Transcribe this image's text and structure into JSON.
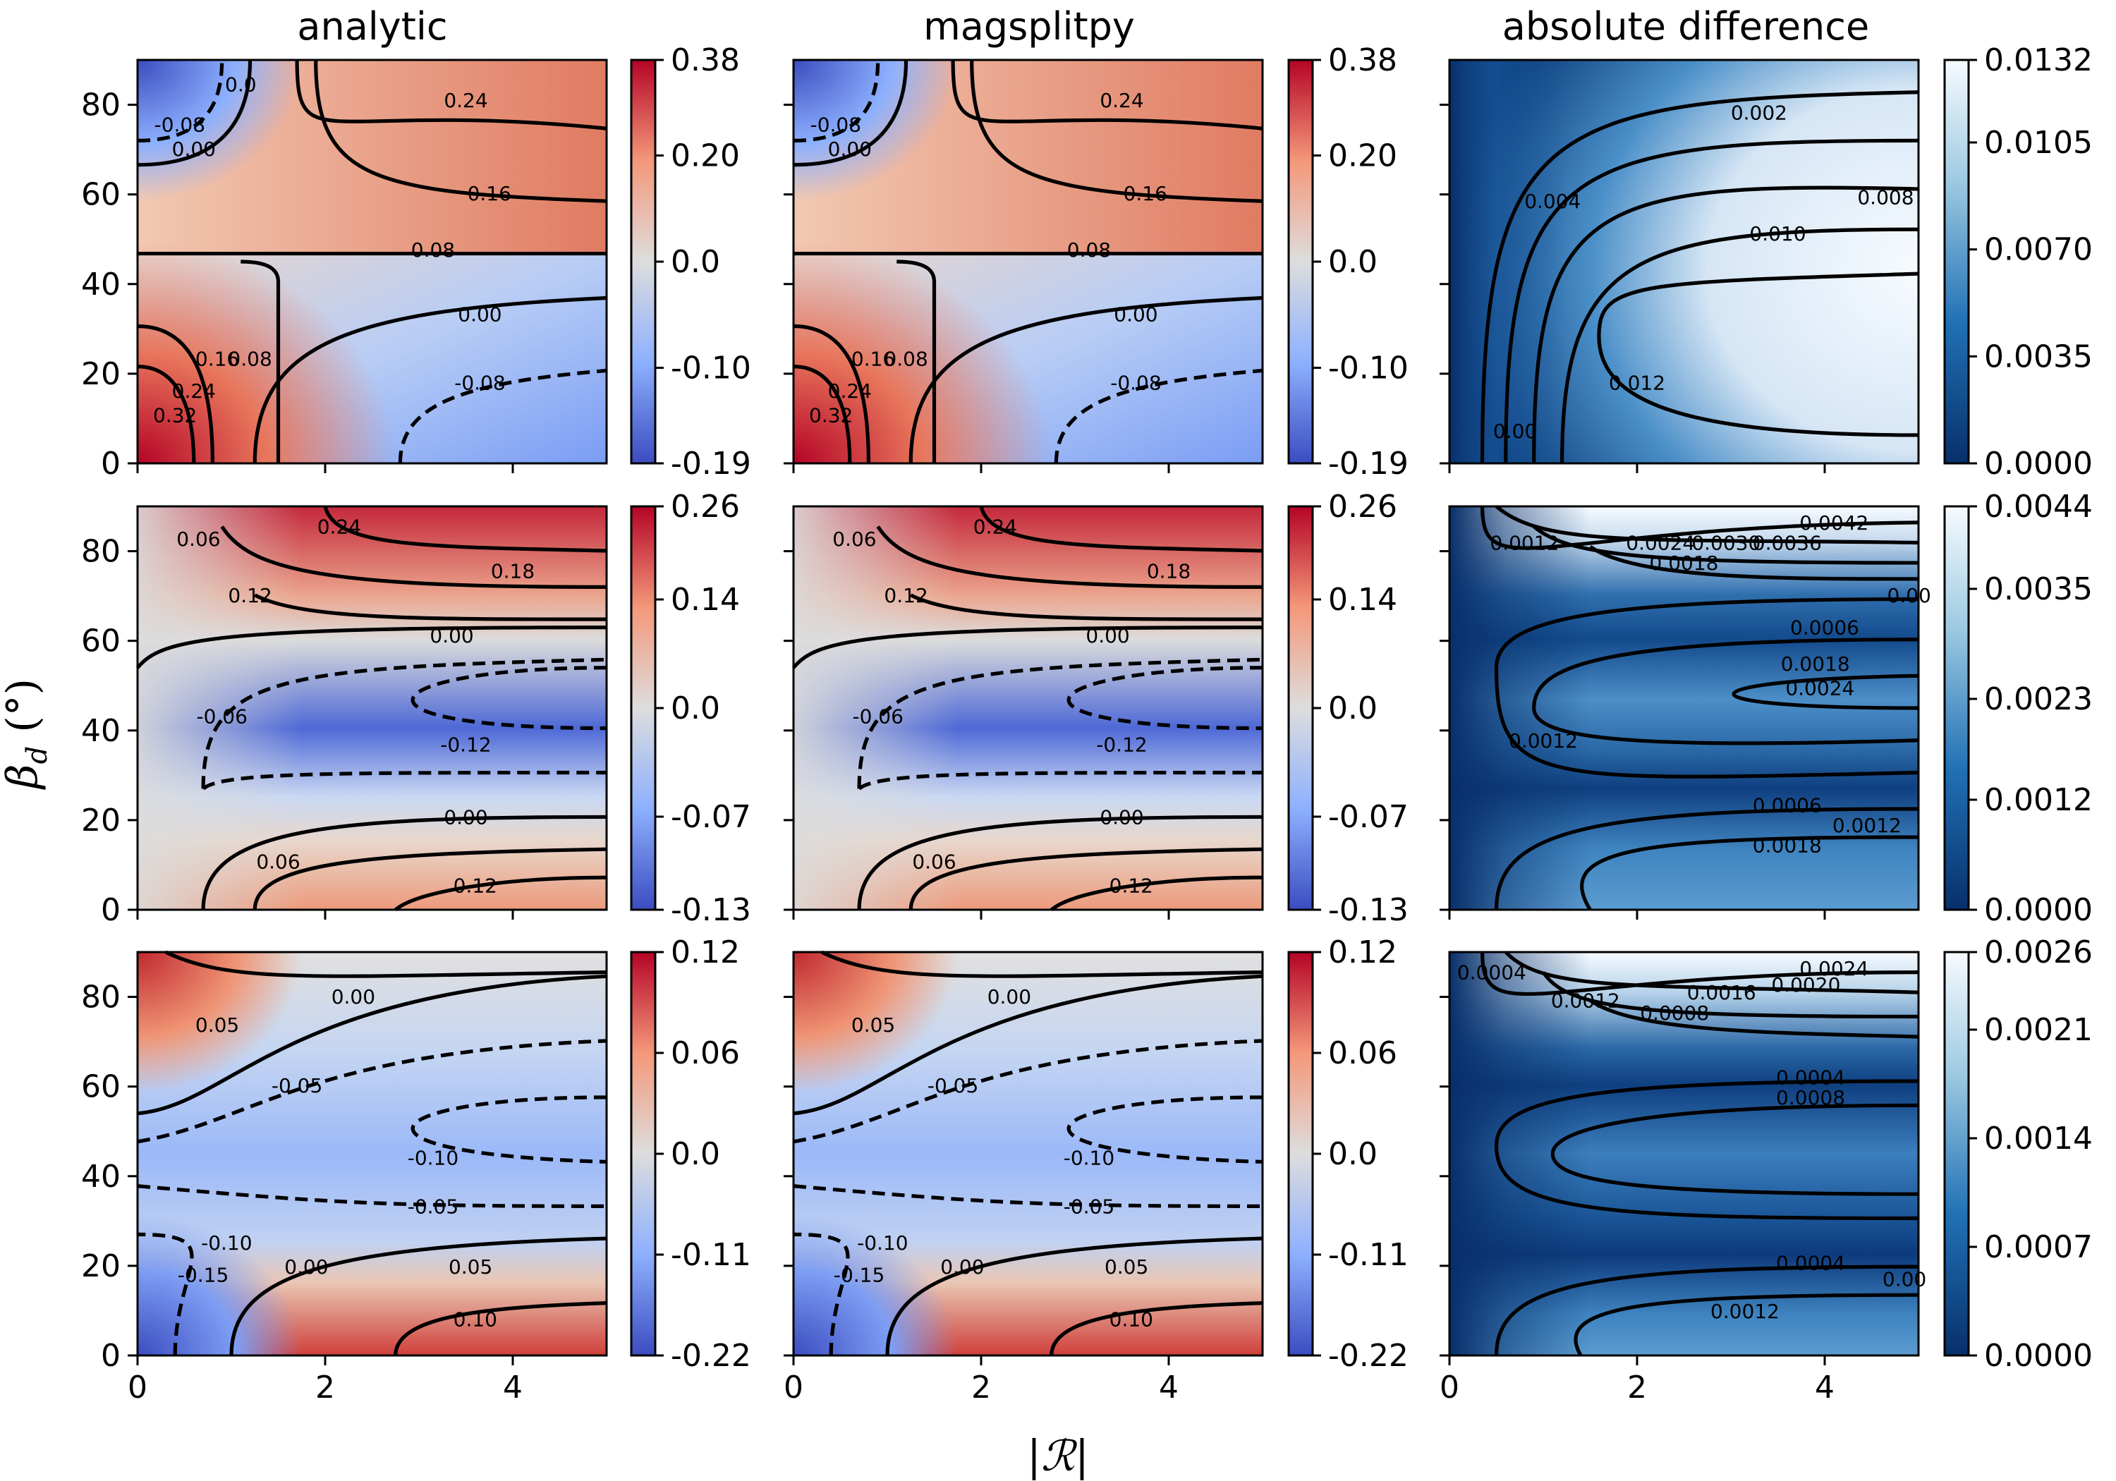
{
  "column_titles": [
    "analytic",
    "magsplitpy",
    "absolute difference"
  ],
  "xlabel": "|ℛ|",
  "ylabel": "β_d (°)",
  "xticks": [
    "0",
    "2",
    "4"
  ],
  "yticks": [
    "0",
    "20",
    "40",
    "60",
    "80"
  ],
  "colormaps": {
    "diverging": [
      "#3b4cc0",
      "#dddddd",
      "#b40426"
    ],
    "sequential_blues": [
      "#08306b",
      "#f7fbff"
    ]
  },
  "chart_data": [
    {
      "type": "heatmap",
      "row": 0,
      "col": 0,
      "x_range": [
        0,
        5
      ],
      "y_range": [
        0,
        90
      ],
      "cmap": "coolwarm",
      "vmin": -0.19,
      "vmax": 0.38,
      "colorbar_ticks": [
        "0.38",
        "0.20",
        "0.0",
        "-0.10",
        "-0.19"
      ],
      "colorbar_tick_values": [
        0.38,
        0.2,
        0.0,
        -0.1,
        -0.19
      ],
      "contour_labels": [
        "0.24",
        "0.16",
        "0.08",
        "0.00",
        "-0.08",
        "0.32",
        "0.24",
        "0.16",
        "0.08",
        "-0.08",
        "0.00",
        "0.0"
      ]
    },
    {
      "type": "heatmap",
      "row": 0,
      "col": 1,
      "x_range": [
        0,
        5
      ],
      "y_range": [
        0,
        90
      ],
      "cmap": "coolwarm",
      "vmin": -0.19,
      "vmax": 0.38,
      "colorbar_ticks": [
        "0.38",
        "0.20",
        "0.0",
        "-0.10",
        "-0.19"
      ],
      "colorbar_tick_values": [
        0.38,
        0.2,
        0.0,
        -0.1,
        -0.19
      ],
      "contour_labels": [
        "0.24",
        "0.16",
        "0.08",
        "0.00",
        "-0.08",
        "0.32",
        "0.24",
        "0.16",
        "0.08",
        "-0.08",
        "0.00"
      ]
    },
    {
      "type": "heatmap",
      "row": 0,
      "col": 2,
      "x_range": [
        0,
        5
      ],
      "y_range": [
        0,
        90
      ],
      "cmap": "Blues_r",
      "vmin": 0.0,
      "vmax": 0.0132,
      "colorbar_ticks": [
        "0.0132",
        "0.0105",
        "0.0070",
        "0.0035",
        "0.0000"
      ],
      "colorbar_tick_values": [
        0.0132,
        0.0105,
        0.007,
        0.0035,
        0.0
      ],
      "contour_labels": [
        "0.002",
        "0.004",
        "0.008",
        "0.010",
        "0.012",
        "0.00"
      ]
    },
    {
      "type": "heatmap",
      "row": 1,
      "col": 0,
      "x_range": [
        0,
        5
      ],
      "y_range": [
        0,
        90
      ],
      "cmap": "coolwarm",
      "vmin": -0.13,
      "vmax": 0.26,
      "colorbar_ticks": [
        "0.26",
        "0.14",
        "0.0",
        "-0.07",
        "-0.13"
      ],
      "colorbar_tick_values": [
        0.26,
        0.14,
        0.0,
        -0.07,
        -0.13
      ],
      "contour_labels": [
        "0.24",
        "0.18",
        "0.12",
        "0.06",
        "0.00",
        "-0.06",
        "-0.12",
        "0.00",
        "0.06",
        "0.12"
      ]
    },
    {
      "type": "heatmap",
      "row": 1,
      "col": 1,
      "x_range": [
        0,
        5
      ],
      "y_range": [
        0,
        90
      ],
      "cmap": "coolwarm",
      "vmin": -0.13,
      "vmax": 0.26,
      "colorbar_ticks": [
        "0.26",
        "0.14",
        "0.0",
        "-0.07",
        "-0.13"
      ],
      "colorbar_tick_values": [
        0.26,
        0.14,
        0.0,
        -0.07,
        -0.13
      ],
      "contour_labels": [
        "0.24",
        "0.18",
        "0.12",
        "0.06",
        "0.00",
        "-0.06",
        "-0.12",
        "0.00",
        "0.06",
        "0.12"
      ]
    },
    {
      "type": "heatmap",
      "row": 1,
      "col": 2,
      "x_range": [
        0,
        5
      ],
      "y_range": [
        0,
        90
      ],
      "cmap": "Blues_r",
      "vmin": 0.0,
      "vmax": 0.0044,
      "colorbar_ticks": [
        "0.0044",
        "0.0035",
        "0.0023",
        "0.0012",
        "0.0000"
      ],
      "colorbar_tick_values": [
        0.0044,
        0.0035,
        0.0023,
        0.0012,
        0.0
      ],
      "contour_labels": [
        "0.0042",
        "0.0036",
        "0.0030",
        "0.0024",
        "0.0018",
        "0.0012",
        "0.0006",
        "0.0018",
        "0.0024",
        "0.0012",
        "0.0006",
        "0.0012",
        "0.0018",
        "0.00"
      ]
    },
    {
      "type": "heatmap",
      "row": 2,
      "col": 0,
      "x_range": [
        0,
        5
      ],
      "y_range": [
        0,
        90
      ],
      "cmap": "coolwarm",
      "vmin": -0.22,
      "vmax": 0.12,
      "colorbar_ticks": [
        "0.12",
        "0.06",
        "0.0",
        "-0.11",
        "-0.22"
      ],
      "colorbar_tick_values": [
        0.12,
        0.06,
        0.0,
        -0.11,
        -0.22
      ],
      "contour_labels": [
        "0.05",
        "0.00",
        "-0.05",
        "-0.10",
        "-0.05",
        "-0.10",
        "-0.15",
        "0.00",
        "0.05",
        "0.10"
      ]
    },
    {
      "type": "heatmap",
      "row": 2,
      "col": 1,
      "x_range": [
        0,
        5
      ],
      "y_range": [
        0,
        90
      ],
      "cmap": "coolwarm",
      "vmin": -0.22,
      "vmax": 0.12,
      "colorbar_ticks": [
        "0.12",
        "0.06",
        "0.0",
        "-0.11",
        "-0.22"
      ],
      "colorbar_tick_values": [
        0.12,
        0.06,
        0.0,
        -0.11,
        -0.22
      ],
      "contour_labels": [
        "0.05",
        "0.00",
        "-0.05",
        "-0.10",
        "-0.05",
        "-0.10",
        "-0.15",
        "0.00",
        "0.05",
        "0.10"
      ]
    },
    {
      "type": "heatmap",
      "row": 2,
      "col": 2,
      "x_range": [
        0,
        5
      ],
      "y_range": [
        0,
        90
      ],
      "cmap": "Blues_r",
      "vmin": 0.0,
      "vmax": 0.0026,
      "colorbar_ticks": [
        "0.0026",
        "0.0021",
        "0.0014",
        "0.0007",
        "0.0000"
      ],
      "colorbar_tick_values": [
        0.0026,
        0.0021,
        0.0014,
        0.0007,
        0.0
      ],
      "contour_labels": [
        "0.0024",
        "0.0020",
        "0.0016",
        "0.0012",
        "0.0008",
        "0.0004",
        "0.0004",
        "0.0008",
        "0.0004",
        "0.0012",
        "0.00"
      ]
    }
  ]
}
